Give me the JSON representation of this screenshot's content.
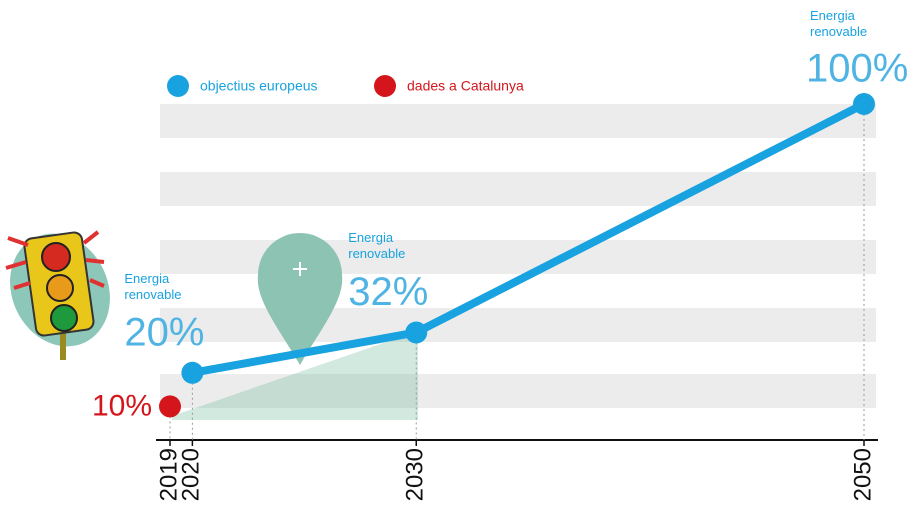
{
  "chart_data": {
    "type": "line",
    "xlim": [
      2019,
      2050
    ],
    "ylim": [
      0,
      100
    ],
    "xticks": [
      2019,
      2020,
      2030,
      2050
    ],
    "series": [
      {
        "name": "objectius europeus",
        "color": "#19a2e0",
        "x": [
          2020,
          2030,
          2050
        ],
        "values": [
          20,
          32,
          100
        ],
        "value_labels": [
          "20%",
          "32%",
          "100%"
        ],
        "annotations": [
          "Energia renovable",
          "Energia renovable",
          "Energia renovable"
        ]
      },
      {
        "name": "dades a Catalunya",
        "color": "#d4161c",
        "x": [
          2019
        ],
        "values": [
          10
        ],
        "value_labels": [
          "10%"
        ]
      }
    ]
  }
}
